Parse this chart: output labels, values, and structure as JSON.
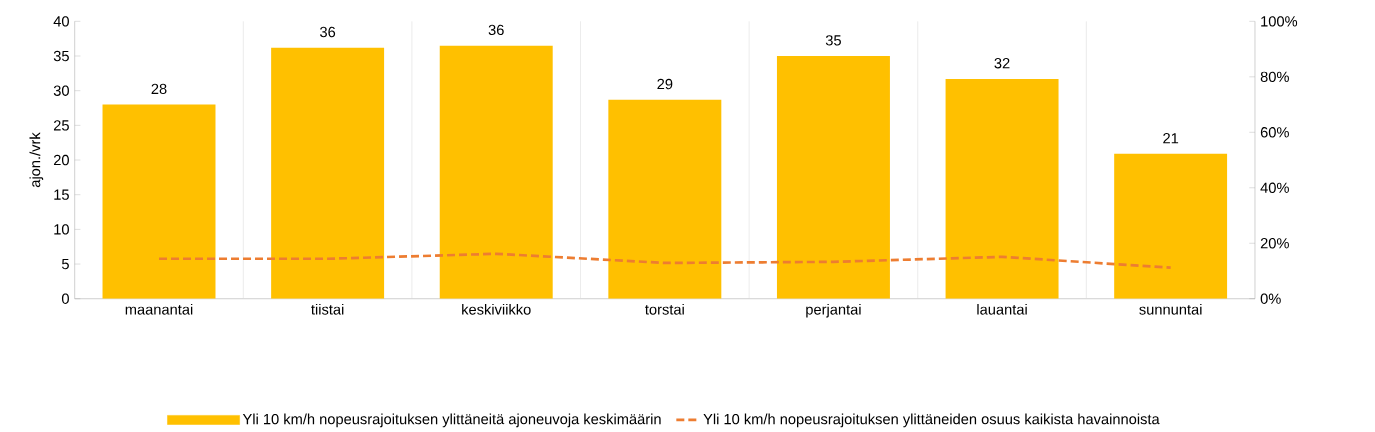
{
  "chart_data": {
    "type": "bar",
    "ylabel": "ajon./vrk",
    "categories": [
      "maanantai",
      "tiistai",
      "keskiviikko",
      "torstai",
      "perjantai",
      "lauantai",
      "sunnuntai"
    ],
    "series": [
      {
        "name": "Yli 10 km/h nopeusrajoituksen ylittäneitä ajoneuvoja keskimäärin",
        "color": "#ffc000",
        "values": [
          28.0,
          36.2,
          36.5,
          28.7,
          35.0,
          31.7,
          20.9
        ],
        "value_labels": [
          "28",
          "36",
          "36",
          "29",
          "35",
          "32",
          "21"
        ]
      },
      {
        "name": "Yli 10 km/h nopeusrajoituksen ylittäneiden osuus kaikista havainnoista",
        "type": "line",
        "axis": "y2",
        "color": "#ed7d31",
        "line_style": "dashed",
        "values": [
          14.4,
          14.4,
          16.2,
          12.9,
          13.3,
          15.1,
          11.2
        ]
      }
    ],
    "ylim": [
      0,
      40
    ],
    "yticks": [
      0,
      5,
      10,
      15,
      20,
      25,
      30,
      35,
      40
    ],
    "y2lim": [
      0,
      100
    ],
    "y2ticks": [
      {
        "value": 0,
        "label": "0%"
      },
      {
        "value": 20,
        "label": "20%"
      },
      {
        "value": 40,
        "label": "40%"
      },
      {
        "value": 60,
        "label": "60%"
      },
      {
        "value": 80,
        "label": "80%"
      },
      {
        "value": 100,
        "label": "100%"
      }
    ],
    "grid": "x",
    "legend": "bottom"
  }
}
